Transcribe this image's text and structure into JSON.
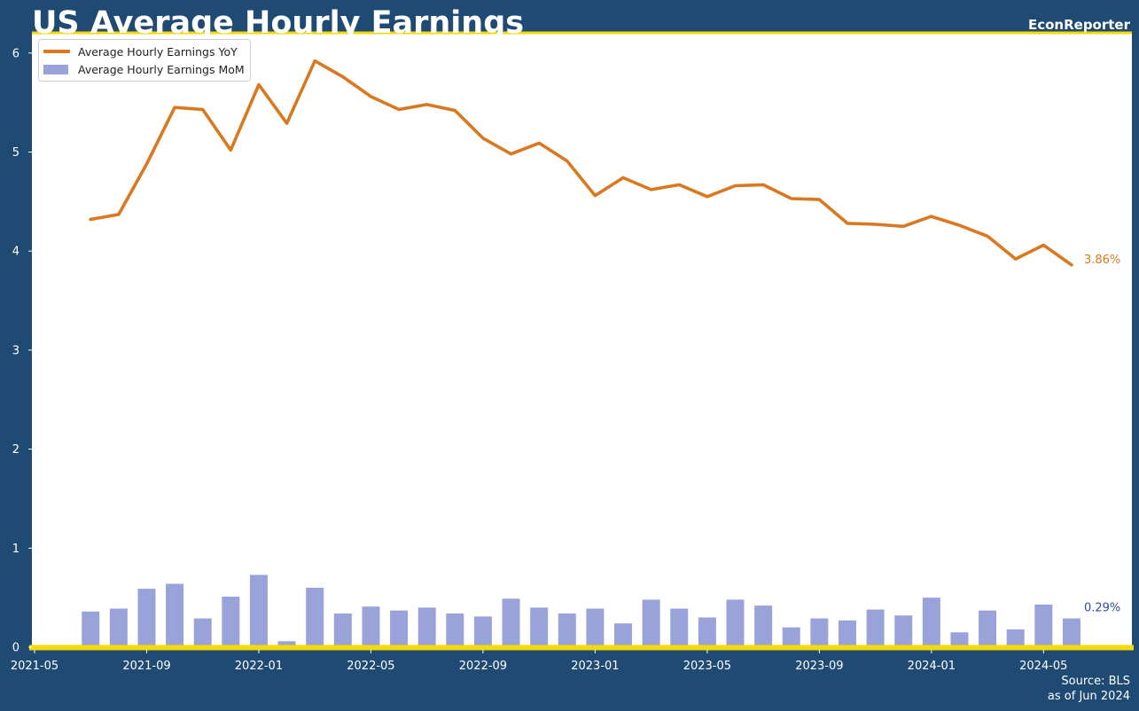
{
  "header": {
    "title": "US Average Hourly Earnings",
    "brand": "EconReporter"
  },
  "footer": {
    "source": "Source: BLS",
    "asof": "as of Jun 2024"
  },
  "colors": {
    "background": "#1e4a73",
    "plot": "#ffffff",
    "accent": "#f5d90a",
    "yoy": "#d9781e",
    "mom": "#99a3d9",
    "mom_label": "#2d4aa3"
  },
  "legend": {
    "yoy_label": "Average Hourly Earnings YoY",
    "mom_label": "Average Hourly Earnings MoM"
  },
  "end_labels": {
    "yoy": "3.86%",
    "mom": "0.29%"
  },
  "chart_data": {
    "type": "line+bar",
    "title": "US Average Hourly Earnings",
    "xlabel": "",
    "ylabel": "",
    "ylim": [
      0,
      6.2
    ],
    "yticks": [
      "0",
      "1",
      "2",
      "3",
      "4",
      "5",
      "6"
    ],
    "xticks": [
      "2021-05",
      "2021-09",
      "2022-01",
      "2022-05",
      "2022-09",
      "2023-01",
      "2023-05",
      "2023-09",
      "2024-01",
      "2024-05"
    ],
    "grid": false,
    "legend_position": "top-left",
    "x": [
      "2021-07",
      "2021-08",
      "2021-09",
      "2021-10",
      "2021-11",
      "2021-12",
      "2022-01",
      "2022-02",
      "2022-03",
      "2022-04",
      "2022-05",
      "2022-06",
      "2022-07",
      "2022-08",
      "2022-09",
      "2022-10",
      "2022-11",
      "2022-12",
      "2023-01",
      "2023-02",
      "2023-03",
      "2023-04",
      "2023-05",
      "2023-06",
      "2023-07",
      "2023-08",
      "2023-09",
      "2023-10",
      "2023-11",
      "2023-12",
      "2024-01",
      "2024-02",
      "2024-03",
      "2024-04",
      "2024-05",
      "2024-06"
    ],
    "series": [
      {
        "name": "Average Hourly Earnings YoY",
        "type": "line",
        "values": [
          4.32,
          4.37,
          4.88,
          5.45,
          5.43,
          5.02,
          5.68,
          5.29,
          5.92,
          5.76,
          5.56,
          5.43,
          5.48,
          5.42,
          5.14,
          4.98,
          5.09,
          4.91,
          4.56,
          4.74,
          4.62,
          4.67,
          4.55,
          4.66,
          4.67,
          4.53,
          4.52,
          4.28,
          4.27,
          4.25,
          4.35,
          4.26,
          4.15,
          3.92,
          4.06,
          3.86
        ]
      },
      {
        "name": "Average Hourly Earnings MoM",
        "type": "bar",
        "values": [
          0.36,
          0.39,
          0.59,
          0.64,
          0.29,
          0.51,
          0.73,
          0.06,
          0.6,
          0.34,
          0.41,
          0.37,
          0.4,
          0.34,
          0.31,
          0.49,
          0.4,
          0.34,
          0.39,
          0.24,
          0.48,
          0.39,
          0.3,
          0.48,
          0.42,
          0.2,
          0.29,
          0.27,
          0.38,
          0.32,
          0.5,
          0.15,
          0.37,
          0.18,
          0.43,
          0.29
        ]
      }
    ]
  }
}
